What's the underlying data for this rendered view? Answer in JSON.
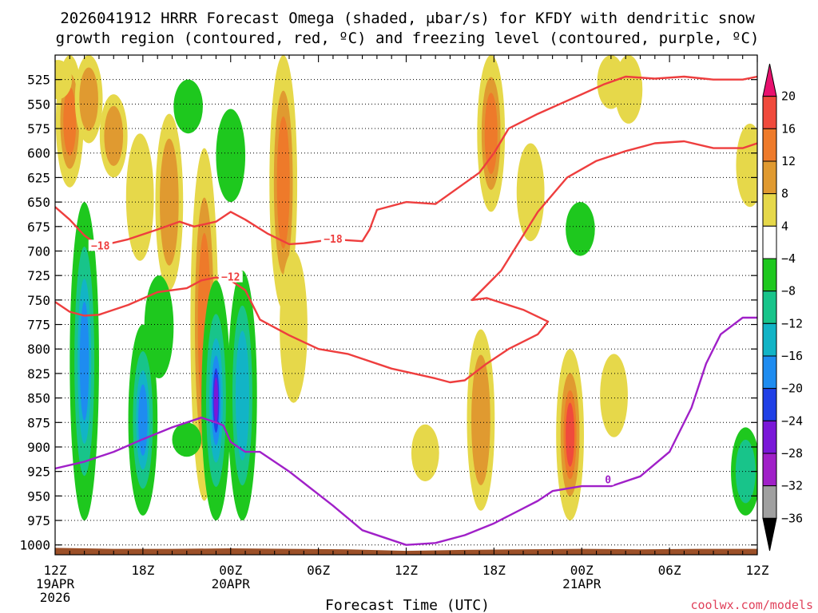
{
  "chart_data": {
    "type": "heatmap",
    "title_line1": "2026041912 HRRR Forecast Omega (shaded, μbar/s) for KFDY with dendritic snow",
    "title_line2": "growth region (contoured, red, ºC) and freezing level (contoured, purple, ºC)",
    "xlabel": "Forecast Time (UTC)",
    "credit": "coolwx.com/models",
    "x_range_hours": [
      0,
      48
    ],
    "y_range_mb": [
      1010,
      500
    ],
    "y_ticks": [
      525,
      550,
      575,
      600,
      625,
      650,
      675,
      700,
      725,
      750,
      775,
      800,
      825,
      850,
      875,
      900,
      925,
      950,
      975,
      1000
    ],
    "x_ticks": [
      {
        "hour": 0,
        "label": "12Z",
        "sub1": "19APR",
        "sub2": "2026"
      },
      {
        "hour": 6,
        "label": "18Z",
        "sub1": "",
        "sub2": ""
      },
      {
        "hour": 12,
        "label": "00Z",
        "sub1": "20APR",
        "sub2": ""
      },
      {
        "hour": 18,
        "label": "06Z",
        "sub1": "",
        "sub2": ""
      },
      {
        "hour": 24,
        "label": "12Z",
        "sub1": "",
        "sub2": ""
      },
      {
        "hour": 30,
        "label": "18Z",
        "sub1": "",
        "sub2": ""
      },
      {
        "hour": 36,
        "label": "00Z",
        "sub1": "21APR",
        "sub2": ""
      },
      {
        "hour": 42,
        "label": "06Z",
        "sub1": "",
        "sub2": ""
      },
      {
        "hour": 48,
        "label": "12Z",
        "sub1": "",
        "sub2": ""
      }
    ],
    "colorbar": {
      "labels": [
        "20",
        "16",
        "12",
        "8",
        "4",
        "−4",
        "−8",
        "−12",
        "−16",
        "−20",
        "−24",
        "−28",
        "−32",
        "−36"
      ],
      "colors": [
        "#e8116e",
        "#f04a3c",
        "#ee7a2a",
        "#e09a30",
        "#e6d84a",
        "#ffffff",
        "#1ec81e",
        "#18c48a",
        "#12b4c6",
        "#1e8cf0",
        "#2040e6",
        "#7a18d8",
        "#a020c8",
        "#a0a0a0",
        "#000000"
      ]
    },
    "omega_colors": {
      "c4": "#e6d84a",
      "c8": "#e09a30",
      "c12": "#ee7a2a",
      "c16": "#f04a3c",
      "n4": "#1ec81e",
      "n8": "#18c48a",
      "n12": "#12b4c6",
      "n16": "#1e8cf0",
      "n20": "#2040e6",
      "n24": "#7a18d8",
      "ground": "#9c5028"
    },
    "omega_regions": [
      {
        "sign": "+",
        "levels": [
          4,
          8,
          12
        ],
        "t": 1.0,
        "p_top": 500,
        "p_bot": 635
      },
      {
        "sign": "+",
        "levels": [
          4
        ],
        "t": 0.2,
        "p_top": 505,
        "p_bot": 545
      },
      {
        "sign": "+",
        "levels": [
          4,
          8
        ],
        "t": 2.3,
        "p_top": 500,
        "p_bot": 590
      },
      {
        "sign": "+",
        "levels": [
          4,
          8
        ],
        "t": 4.0,
        "p_top": 540,
        "p_bot": 625
      },
      {
        "sign": "+",
        "levels": [
          4
        ],
        "t": 5.8,
        "p_top": 580,
        "p_bot": 710
      },
      {
        "sign": "+",
        "levels": [
          4,
          8
        ],
        "t": 7.8,
        "p_top": 560,
        "p_bot": 740
      },
      {
        "sign": "+",
        "levels": [
          4,
          8,
          12
        ],
        "t": 10.2,
        "p_top": 595,
        "p_bot": 955
      },
      {
        "sign": "+",
        "levels": [
          4,
          8,
          12
        ],
        "t": 15.6,
        "p_top": 500,
        "p_bot": 760
      },
      {
        "sign": "+",
        "levels": [
          4
        ],
        "t": 16.3,
        "p_top": 700,
        "p_bot": 855
      },
      {
        "sign": "+",
        "levels": [
          4
        ],
        "t": 25.3,
        "p_top": 877,
        "p_bot": 935
      },
      {
        "sign": "+",
        "levels": [
          4,
          8,
          12
        ],
        "t": 29.8,
        "p_top": 500,
        "p_bot": 660
      },
      {
        "sign": "+",
        "levels": [
          4
        ],
        "t": 32.5,
        "p_top": 590,
        "p_bot": 690
      },
      {
        "sign": "+",
        "levels": [
          4,
          8
        ],
        "t": 29.1,
        "p_top": 780,
        "p_bot": 965
      },
      {
        "sign": "+",
        "levels": [
          4,
          8,
          12,
          16
        ],
        "t": 35.2,
        "p_top": 800,
        "p_bot": 975
      },
      {
        "sign": "+",
        "levels": [
          4
        ],
        "t": 38.0,
        "p_top": 500,
        "p_bot": 555
      },
      {
        "sign": "+",
        "levels": [
          4
        ],
        "t": 39.2,
        "p_top": 500,
        "p_bot": 570
      },
      {
        "sign": "+",
        "levels": [
          4
        ],
        "t": 38.2,
        "p_top": 805,
        "p_bot": 890
      },
      {
        "sign": "+",
        "levels": [
          4
        ],
        "t": 47.5,
        "p_top": 570,
        "p_bot": 655
      },
      {
        "sign": "-",
        "levels": [
          4,
          8,
          12,
          16
        ],
        "t": 2.0,
        "p_top": 650,
        "p_bot": 975
      },
      {
        "sign": "-",
        "levels": [
          4,
          8,
          12,
          16
        ],
        "t": 6.0,
        "p_top": 775,
        "p_bot": 970
      },
      {
        "sign": "-",
        "levels": [
          4
        ],
        "t": 7.1,
        "p_top": 725,
        "p_bot": 830
      },
      {
        "sign": "-",
        "levels": [
          4
        ],
        "t": 9.0,
        "p_top": 875,
        "p_bot": 910
      },
      {
        "sign": "-",
        "levels": [
          4,
          8,
          12,
          16,
          20,
          24
        ],
        "t": 11.0,
        "p_top": 730,
        "p_bot": 975
      },
      {
        "sign": "-",
        "levels": [
          4,
          8,
          12
        ],
        "t": 12.8,
        "p_top": 720,
        "p_bot": 975
      },
      {
        "sign": "-",
        "levels": [
          4
        ],
        "t": 12.0,
        "p_top": 555,
        "p_bot": 650
      },
      {
        "sign": "-",
        "levels": [
          4
        ],
        "t": 9.1,
        "p_top": 525,
        "p_bot": 580
      },
      {
        "sign": "-",
        "levels": [
          4
        ],
        "t": 35.9,
        "p_top": 650,
        "p_bot": 705
      },
      {
        "sign": "-",
        "levels": [
          4,
          8
        ],
        "t": 47.2,
        "p_top": 880,
        "p_bot": 970
      }
    ],
    "series": [
      {
        "type": "contour",
        "color": "#ee3e3e",
        "label_text": "−18",
        "labels": [
          {
            "t": 3.1,
            "p": 695
          },
          {
            "t": 19.0,
            "p": 688
          }
        ],
        "x": [
          0,
          1,
          2,
          3,
          5,
          7,
          8.5,
          9.5,
          11,
          12,
          13,
          14.5,
          16,
          17,
          19,
          21,
          21.5,
          22,
          24,
          26,
          29,
          30,
          31,
          33,
          36,
          37.5,
          39,
          41,
          43,
          45,
          47,
          48
        ],
        "y": [
          655,
          668,
          684,
          695,
          688,
          678,
          670,
          675,
          670,
          660,
          668,
          682,
          693,
          692,
          688,
          690,
          678,
          658,
          650,
          652,
          620,
          600,
          575,
          560,
          540,
          530,
          522,
          524,
          522,
          525,
          525,
          522
        ]
      },
      {
        "type": "contour",
        "color": "#ee3e3e",
        "label_text": "−12",
        "labels": [
          {
            "t": 12.0,
            "p": 727
          }
        ],
        "x": [
          0,
          1,
          2,
          3,
          5,
          7,
          9,
          10,
          11,
          12,
          13,
          14,
          16,
          18,
          20,
          23,
          26,
          27,
          28,
          29.5,
          31,
          33,
          33.7,
          32,
          29.5,
          28.5,
          30.5,
          33,
          35,
          37,
          39,
          41,
          43,
          45,
          47,
          48
        ],
        "y": [
          752,
          762,
          766,
          765,
          755,
          742,
          738,
          730,
          727,
          730,
          740,
          770,
          786,
          800,
          805,
          820,
          830,
          834,
          832,
          815,
          800,
          785,
          772,
          760,
          748,
          750,
          720,
          660,
          625,
          608,
          598,
          590,
          588,
          595,
          595,
          590
        ]
      },
      {
        "type": "contour",
        "color": "#a020c8",
        "label_text": "0",
        "labels": [
          {
            "t": 37.8,
            "p": 934
          }
        ],
        "x": [
          0,
          2,
          4,
          6,
          8,
          9,
          10,
          11,
          11.5,
          12,
          13,
          14,
          16,
          19,
          21,
          24,
          26,
          28,
          30,
          33,
          34,
          36,
          38,
          40,
          42,
          43.5,
          44.5,
          45.5,
          47,
          48
        ],
        "y": [
          922,
          915,
          905,
          892,
          880,
          875,
          870,
          875,
          878,
          895,
          905,
          905,
          925,
          960,
          985,
          1000,
          998,
          990,
          978,
          955,
          945,
          940,
          940,
          930,
          905,
          860,
          815,
          785,
          768,
          768
        ]
      }
    ]
  }
}
